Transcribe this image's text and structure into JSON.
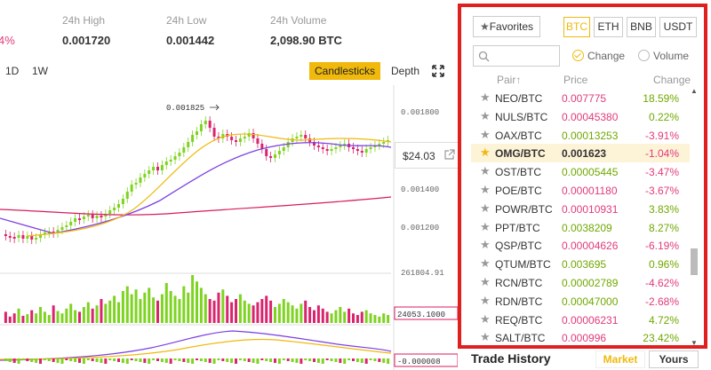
{
  "stats": {
    "change_fragment": "4%",
    "high_label": "24h High",
    "high_value": "0.001720",
    "low_label": "24h Low",
    "low_value": "0.001442",
    "volume_label": "24h Volume",
    "volume_value": "2,098.90 BTC"
  },
  "toolbar": {
    "timeframes": [
      "1D",
      "1W"
    ],
    "candlesticks_label": "Candlesticks",
    "depth_label": "Depth"
  },
  "chart": {
    "peak_label": "0.001825",
    "price_axis": [
      "0.001800",
      "0.001400",
      "0.001200"
    ],
    "volume_max_label": "261804.91",
    "volume_current_label": "24053.1000",
    "macd_label": "-0.000008",
    "current_price_tag": "$24.03",
    "colors": {
      "up": "#7ed321",
      "down": "#d9256d",
      "ma_short": "#f0b90b",
      "ma_mid": "#7b3fe4",
      "ma_long": "#d81b60"
    }
  },
  "panel": {
    "favorites_label": "Favorites",
    "quote_tabs": [
      "BTC",
      "ETH",
      "BNB",
      "USDT"
    ],
    "active_quote": "BTC",
    "search_placeholder": "",
    "sort_change_label": "Change",
    "sort_volume_label": "Volume",
    "columns": {
      "pair": "Pair",
      "price": "Price",
      "change": "Change"
    },
    "rows": [
      {
        "pair": "NEO/BTC",
        "price": "0.007775",
        "change": "18.59%",
        "price_dir": "down",
        "chg_dir": "up"
      },
      {
        "pair": "NULS/BTC",
        "price": "0.00045380",
        "change": "0.22%",
        "price_dir": "down",
        "chg_dir": "up"
      },
      {
        "pair": "OAX/BTC",
        "price": "0.00013253",
        "change": "-3.91%",
        "price_dir": "up",
        "chg_dir": "down"
      },
      {
        "pair": "OMG/BTC",
        "price": "0.001623",
        "change": "-1.04%",
        "price_dir": "neutral",
        "chg_dir": "down"
      },
      {
        "pair": "OST/BTC",
        "price": "0.00005445",
        "change": "-3.47%",
        "price_dir": "up",
        "chg_dir": "down"
      },
      {
        "pair": "POE/BTC",
        "price": "0.00001180",
        "change": "-3.67%",
        "price_dir": "down",
        "chg_dir": "down"
      },
      {
        "pair": "POWR/BTC",
        "price": "0.00010931",
        "change": "3.83%",
        "price_dir": "down",
        "chg_dir": "up"
      },
      {
        "pair": "PPT/BTC",
        "price": "0.0038209",
        "change": "8.27%",
        "price_dir": "up",
        "chg_dir": "up"
      },
      {
        "pair": "QSP/BTC",
        "price": "0.00004626",
        "change": "-6.19%",
        "price_dir": "down",
        "chg_dir": "down"
      },
      {
        "pair": "QTUM/BTC",
        "price": "0.003695",
        "change": "0.96%",
        "price_dir": "up",
        "chg_dir": "up"
      },
      {
        "pair": "RCN/BTC",
        "price": "0.00002789",
        "change": "-4.62%",
        "price_dir": "up",
        "chg_dir": "down"
      },
      {
        "pair": "RDN/BTC",
        "price": "0.00047000",
        "change": "-2.68%",
        "price_dir": "up",
        "chg_dir": "down"
      },
      {
        "pair": "REQ/BTC",
        "price": "0.00006231",
        "change": "4.72%",
        "price_dir": "down",
        "chg_dir": "up"
      },
      {
        "pair": "SALT/BTC",
        "price": "0.000996",
        "change": "23.42%",
        "price_dir": "down",
        "chg_dir": "up"
      }
    ],
    "selected_pair": "OMG/BTC"
  },
  "trade_history": {
    "title": "Trade History",
    "tab_market": "Market",
    "tab_yours": "Yours"
  }
}
